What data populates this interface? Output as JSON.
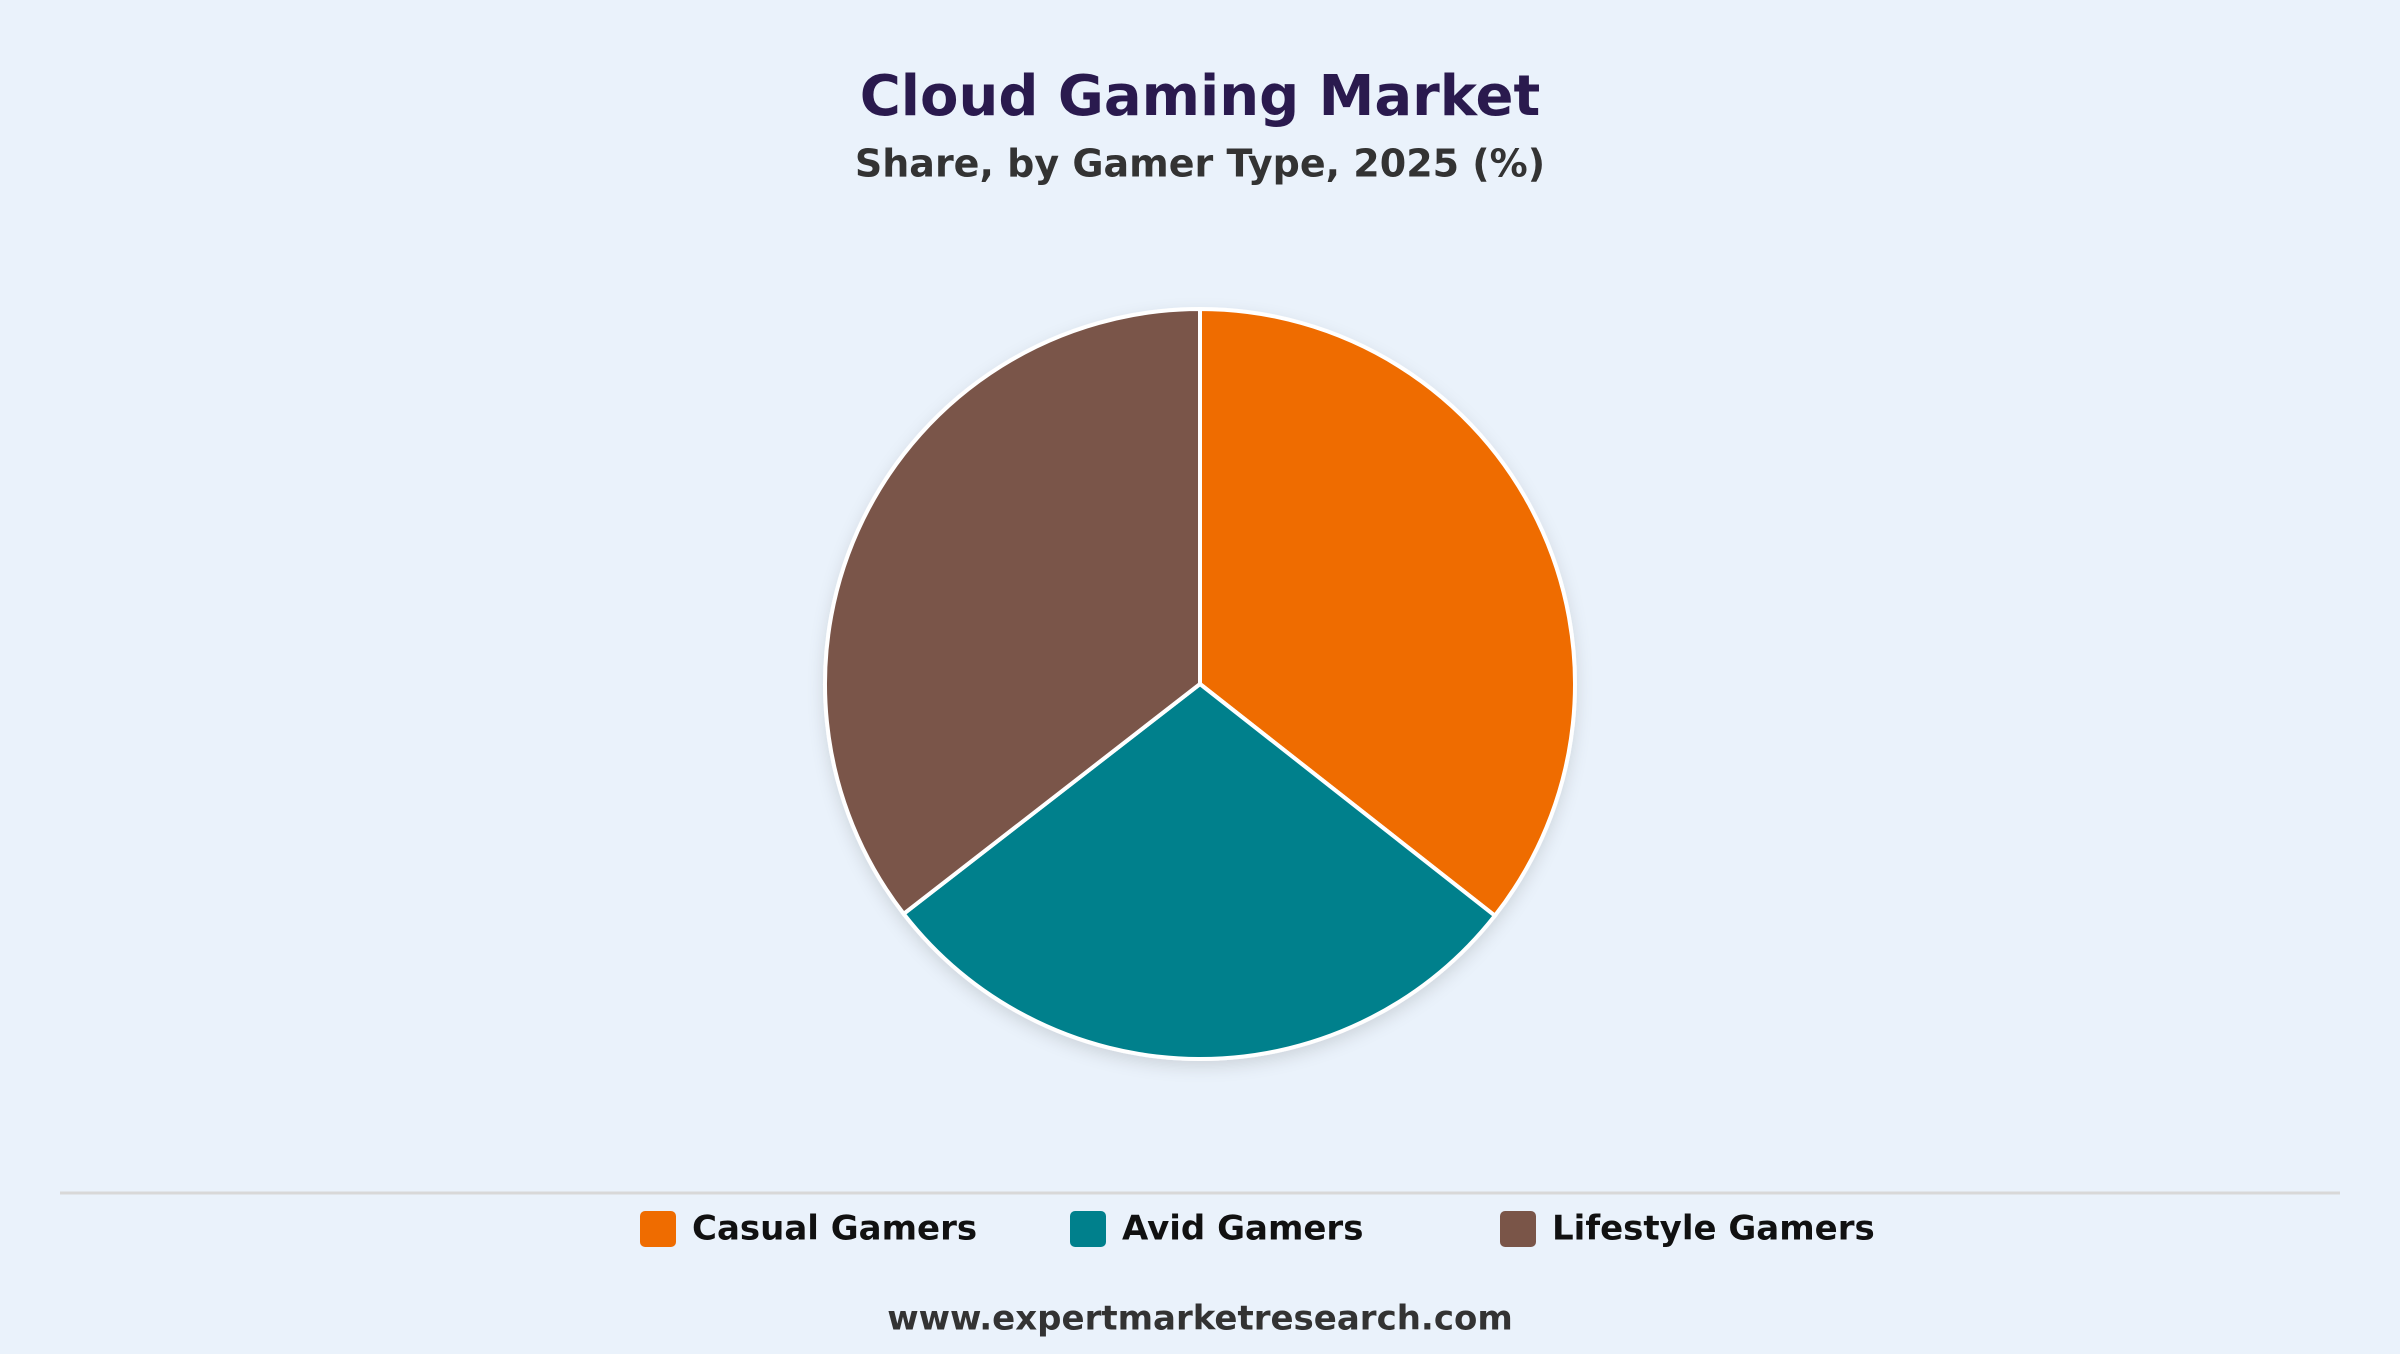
{
  "chart_data": {
    "type": "pie",
    "title": "Cloud Gaming Market",
    "subtitle": "Share, by Gamer Type, 2025 (%)",
    "categories": [
      "Casual Gamers",
      "Avid Gamers",
      "Lifestyle Gamers"
    ],
    "values": [
      35.6,
      28.9,
      35.5
    ],
    "colors": [
      "#ef6c00",
      "#00808c",
      "#7a5548"
    ],
    "source": "www.expertmarketresearch.com"
  }
}
